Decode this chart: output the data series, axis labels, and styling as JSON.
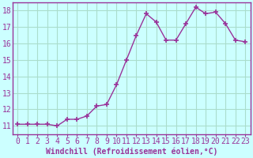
{
  "x": [
    0,
    1,
    2,
    3,
    4,
    5,
    6,
    7,
    8,
    9,
    10,
    11,
    12,
    13,
    14,
    15,
    16,
    17,
    18,
    19,
    20,
    21,
    22,
    23
  ],
  "y": [
    11.1,
    11.1,
    11.1,
    11.1,
    11.0,
    11.4,
    11.4,
    11.6,
    12.2,
    12.3,
    13.5,
    15.0,
    16.5,
    17.8,
    17.3,
    16.2,
    16.2,
    17.2,
    18.2,
    17.8,
    17.9,
    17.2,
    16.2,
    16.1
  ],
  "line_color": "#993399",
  "marker": "+",
  "marker_size": 4,
  "background_color": "#ccffff",
  "grid_color": "#aaddcc",
  "xlabel": "Windchill (Refroidissement éolien,°C)",
  "xlabel_fontsize": 7,
  "tick_fontsize": 7,
  "ylim": [
    10.5,
    18.5
  ],
  "xlim": [
    -0.5,
    23.5
  ],
  "yticks": [
    11,
    12,
    13,
    14,
    15,
    16,
    17,
    18
  ],
  "xticks": [
    0,
    1,
    2,
    3,
    4,
    5,
    6,
    7,
    8,
    9,
    10,
    11,
    12,
    13,
    14,
    15,
    16,
    17,
    18,
    19,
    20,
    21,
    22,
    23
  ],
  "spine_color": "#993399",
  "title_color": "#993399"
}
